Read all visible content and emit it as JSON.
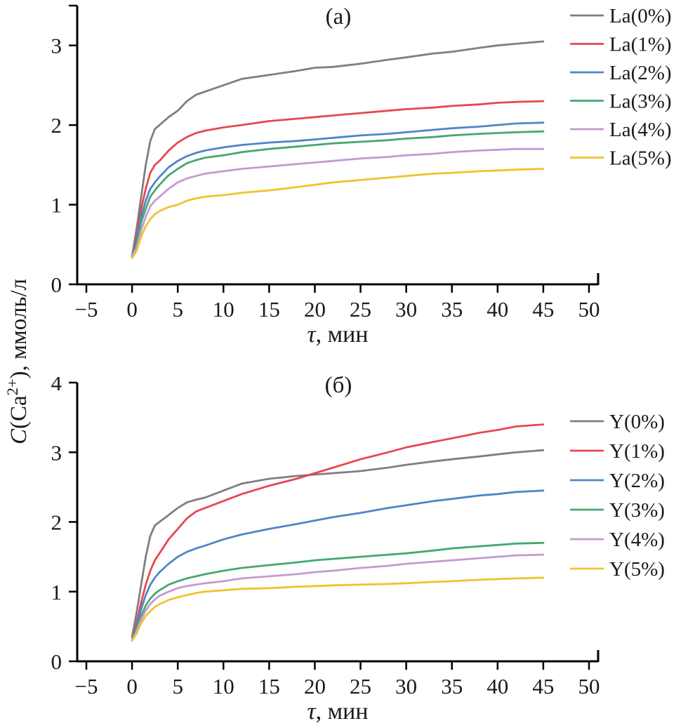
{
  "figure": {
    "ylabel_parts": {
      "c": "C",
      "open": "(Ca",
      "sup": "2+",
      "rest": "), ммоль/л"
    }
  },
  "chart_data": [
    {
      "type": "line",
      "panel": "a",
      "title": "(а)",
      "xlabel": "τ, мин",
      "ylabel": "C(Ca2+), ммоль/л",
      "xlim": [
        -6,
        51
      ],
      "ylim": [
        0,
        3.5
      ],
      "xticks": [
        -5,
        0,
        5,
        10,
        15,
        20,
        25,
        30,
        35,
        40,
        45,
        50
      ],
      "yticks": [
        0,
        1,
        2,
        3
      ],
      "grid": false,
      "legend_position": "right",
      "x": [
        0,
        0.5,
        1,
        1.5,
        2,
        2.5,
        3,
        4,
        5,
        6,
        7,
        8,
        10,
        12,
        15,
        18,
        20,
        22,
        25,
        28,
        30,
        33,
        35,
        38,
        40,
        42,
        45
      ],
      "series": [
        {
          "name": "La(0%)",
          "color": "#7f7f7f",
          "values": [
            0.35,
            0.7,
            1.1,
            1.5,
            1.8,
            1.95,
            2.0,
            2.1,
            2.18,
            2.3,
            2.38,
            2.42,
            2.5,
            2.58,
            2.63,
            2.68,
            2.72,
            2.73,
            2.77,
            2.82,
            2.85,
            2.9,
            2.92,
            2.97,
            3.0,
            3.02,
            3.05
          ]
        },
        {
          "name": "La(1%)",
          "color": "#e8474f",
          "values": [
            0.35,
            0.6,
            0.95,
            1.2,
            1.4,
            1.5,
            1.55,
            1.68,
            1.78,
            1.85,
            1.9,
            1.93,
            1.97,
            2.0,
            2.05,
            2.08,
            2.1,
            2.12,
            2.15,
            2.18,
            2.2,
            2.22,
            2.24,
            2.26,
            2.28,
            2.29,
            2.3
          ]
        },
        {
          "name": "La(2%)",
          "color": "#4d86c8",
          "values": [
            0.35,
            0.55,
            0.85,
            1.05,
            1.2,
            1.28,
            1.35,
            1.47,
            1.55,
            1.61,
            1.65,
            1.68,
            1.72,
            1.75,
            1.78,
            1.8,
            1.82,
            1.84,
            1.87,
            1.89,
            1.91,
            1.94,
            1.96,
            1.98,
            2.0,
            2.02,
            2.03
          ]
        },
        {
          "name": "La(3%)",
          "color": "#45a871",
          "values": [
            0.35,
            0.5,
            0.78,
            0.95,
            1.1,
            1.18,
            1.25,
            1.37,
            1.45,
            1.52,
            1.56,
            1.59,
            1.62,
            1.66,
            1.7,
            1.73,
            1.75,
            1.77,
            1.79,
            1.81,
            1.83,
            1.85,
            1.87,
            1.89,
            1.9,
            1.91,
            1.92
          ]
        },
        {
          "name": "La(4%)",
          "color": "#c49ad1",
          "values": [
            0.35,
            0.45,
            0.68,
            0.85,
            0.98,
            1.05,
            1.1,
            1.2,
            1.28,
            1.33,
            1.36,
            1.39,
            1.42,
            1.45,
            1.48,
            1.51,
            1.53,
            1.55,
            1.58,
            1.6,
            1.62,
            1.64,
            1.66,
            1.68,
            1.69,
            1.7,
            1.7
          ]
        },
        {
          "name": "La(5%)",
          "color": "#f0c330",
          "values": [
            0.33,
            0.42,
            0.6,
            0.73,
            0.82,
            0.88,
            0.92,
            0.97,
            1.0,
            1.05,
            1.08,
            1.1,
            1.12,
            1.15,
            1.18,
            1.22,
            1.25,
            1.28,
            1.31,
            1.34,
            1.36,
            1.39,
            1.4,
            1.42,
            1.43,
            1.44,
            1.45
          ]
        }
      ]
    },
    {
      "type": "line",
      "panel": "b",
      "title": "(б)",
      "xlabel": "τ, мин",
      "ylabel": "C(Ca2+), ммоль/л",
      "xlim": [
        -6,
        51
      ],
      "ylim": [
        0,
        4
      ],
      "xticks": [
        -5,
        0,
        5,
        10,
        15,
        20,
        25,
        30,
        35,
        40,
        45,
        50
      ],
      "yticks": [
        0,
        1,
        2,
        3,
        4
      ],
      "grid": false,
      "legend_position": "right",
      "x": [
        0,
        0.5,
        1,
        1.5,
        2,
        2.5,
        3,
        4,
        5,
        6,
        7,
        8,
        10,
        12,
        15,
        18,
        20,
        22,
        25,
        28,
        30,
        33,
        35,
        38,
        40,
        42,
        45
      ],
      "series": [
        {
          "name": "Y(0%)",
          "color": "#7f7f7f",
          "values": [
            0.35,
            0.7,
            1.1,
            1.5,
            1.8,
            1.95,
            2.0,
            2.1,
            2.2,
            2.28,
            2.32,
            2.35,
            2.45,
            2.55,
            2.62,
            2.66,
            2.68,
            2.7,
            2.73,
            2.78,
            2.82,
            2.87,
            2.9,
            2.94,
            2.97,
            3.0,
            3.03
          ]
        },
        {
          "name": "Y(1%)",
          "color": "#e8474f",
          "values": [
            0.3,
            0.55,
            0.85,
            1.1,
            1.3,
            1.45,
            1.55,
            1.75,
            1.9,
            2.05,
            2.15,
            2.2,
            2.3,
            2.4,
            2.52,
            2.62,
            2.7,
            2.78,
            2.9,
            3.0,
            3.07,
            3.15,
            3.2,
            3.28,
            3.32,
            3.37,
            3.4
          ]
        },
        {
          "name": "Y(2%)",
          "color": "#4d86c8",
          "values": [
            0.3,
            0.5,
            0.75,
            0.95,
            1.1,
            1.2,
            1.28,
            1.4,
            1.5,
            1.57,
            1.62,
            1.66,
            1.75,
            1.82,
            1.9,
            1.97,
            2.02,
            2.07,
            2.13,
            2.2,
            2.24,
            2.3,
            2.33,
            2.38,
            2.4,
            2.43,
            2.45
          ]
        },
        {
          "name": "Y(3%)",
          "color": "#45a871",
          "values": [
            0.3,
            0.45,
            0.65,
            0.8,
            0.9,
            0.97,
            1.02,
            1.1,
            1.15,
            1.19,
            1.22,
            1.25,
            1.3,
            1.34,
            1.38,
            1.42,
            1.45,
            1.47,
            1.5,
            1.53,
            1.55,
            1.59,
            1.62,
            1.65,
            1.67,
            1.69,
            1.7
          ]
        },
        {
          "name": "Y(4%)",
          "color": "#c49ad1",
          "values": [
            0.3,
            0.43,
            0.6,
            0.73,
            0.82,
            0.89,
            0.94,
            1.0,
            1.05,
            1.08,
            1.1,
            1.12,
            1.15,
            1.19,
            1.22,
            1.25,
            1.28,
            1.3,
            1.34,
            1.37,
            1.4,
            1.43,
            1.45,
            1.48,
            1.5,
            1.52,
            1.53
          ]
        },
        {
          "name": "Y(5%)",
          "color": "#f0c330",
          "values": [
            0.3,
            0.4,
            0.55,
            0.65,
            0.72,
            0.78,
            0.82,
            0.88,
            0.92,
            0.95,
            0.98,
            1.0,
            1.02,
            1.04,
            1.05,
            1.07,
            1.08,
            1.09,
            1.1,
            1.11,
            1.12,
            1.14,
            1.15,
            1.17,
            1.18,
            1.19,
            1.2
          ]
        }
      ]
    }
  ]
}
